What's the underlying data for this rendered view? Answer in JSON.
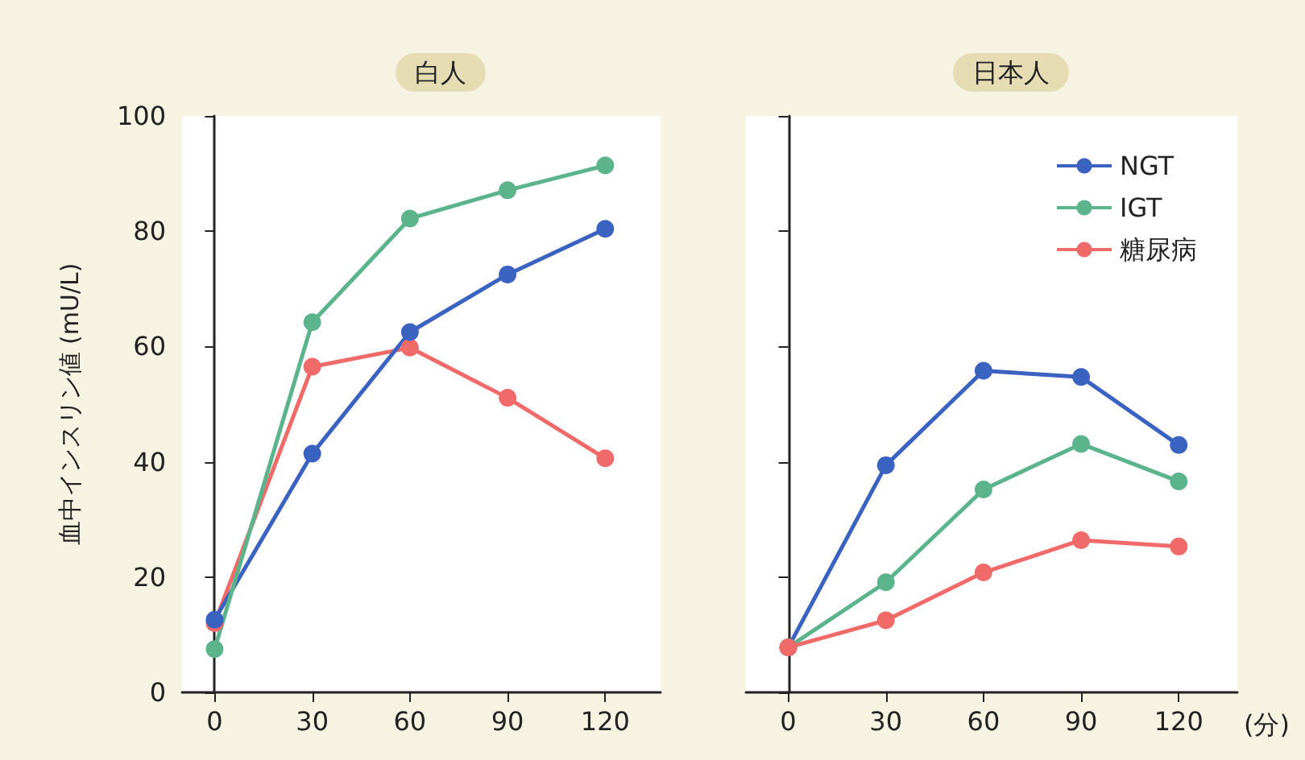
{
  "chart_data": [
    {
      "type": "line",
      "title": "白人",
      "ylabel": "血中インスリン値 (mU/L)",
      "x": [
        0,
        30,
        60,
        90,
        120
      ],
      "xlim": [
        -10,
        137
      ],
      "xticks": [
        0,
        30,
        60,
        90,
        120
      ],
      "ylim": [
        0,
        100
      ],
      "yticks": [
        0,
        20,
        40,
        60,
        80,
        100
      ],
      "marker": "circle",
      "legend": false,
      "series": [
        {
          "color": "#f06a6a",
          "values": [
            12,
            56.5,
            59.8,
            51.1,
            40.6
          ]
        },
        {
          "color": "#3a62c0",
          "values": [
            12.6,
            41.4,
            62.5,
            72.5,
            80.4
          ]
        },
        {
          "color": "#5bb48c",
          "values": [
            7.5,
            64.2,
            82.2,
            87.1,
            91.4
          ]
        }
      ]
    },
    {
      "type": "line",
      "title": "日本人",
      "xlabel": "(分)",
      "x": [
        0,
        30,
        60,
        90,
        120
      ],
      "xlim": [
        -13,
        138
      ],
      "xticks": [
        0,
        30,
        60,
        90,
        120
      ],
      "ylim": [
        0,
        100
      ],
      "yticks": [
        0,
        20,
        40,
        60,
        80,
        100
      ],
      "tick_labels": "x",
      "marker": "circle",
      "legend": "top right",
      "series": [
        {
          "name": "NGT",
          "color": "#3a62c0",
          "values": [
            7.8,
            39.4,
            55.8,
            54.7,
            42.9
          ]
        },
        {
          "name": "IGT",
          "color": "#5bb48c",
          "values": [
            7.8,
            19.1,
            35.2,
            43.1,
            36.6
          ]
        },
        {
          "name": "糖尿病",
          "color": "#f06a6a",
          "values": [
            7.8,
            12.5,
            20.8,
            26.4,
            25.3
          ]
        }
      ]
    }
  ]
}
